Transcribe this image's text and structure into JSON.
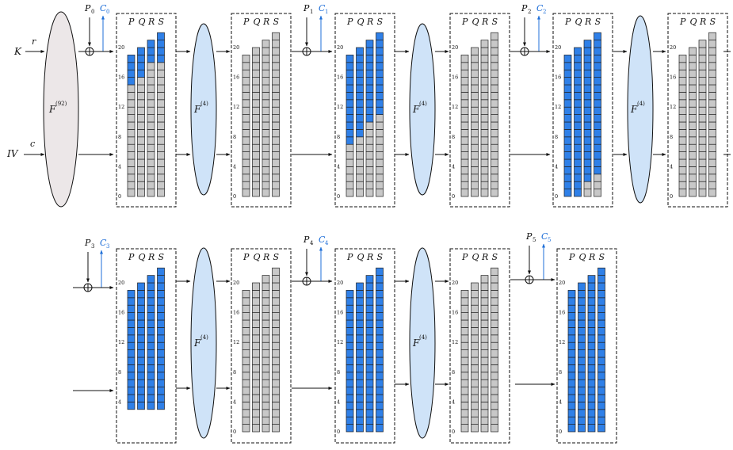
{
  "inputs": {
    "key": "K",
    "rate": "r",
    "iv": "IV",
    "capacity": "c"
  },
  "functions": {
    "init": "F",
    "init_sup": "(92)",
    "round": "F",
    "round_sup": "(4)"
  },
  "columns": [
    "P",
    "Q",
    "R",
    "S"
  ],
  "y_ticks": [
    "0",
    "4",
    "8",
    "12",
    "16",
    "20"
  ],
  "colors": {
    "blue": "#2f80e8",
    "gray": "#c8c8c8",
    "ellipse_init": "#ece7e8",
    "ellipse_round": "#cfe3f8",
    "cipher": "#1f6fd8"
  },
  "absorb_labels": [
    {
      "p": "P",
      "p_sub": "0",
      "c": "C",
      "c_sub": "0"
    },
    {
      "p": "P",
      "p_sub": "1",
      "c": "C",
      "c_sub": "1"
    },
    {
      "p": "P",
      "p_sub": "2",
      "c": "C",
      "c_sub": "2"
    },
    {
      "p": "P",
      "p_sub": "3",
      "c": "C",
      "c_sub": "3"
    },
    {
      "p": "P",
      "p_sub": "4",
      "c": "C",
      "c_sub": "4"
    },
    {
      "p": "P",
      "p_sub": "5",
      "c": "C",
      "c_sub": "5"
    }
  ],
  "states": [
    {
      "row": 1,
      "cols": [
        {
          "total": 19,
          "blue_top": 4
        },
        {
          "total": 20,
          "blue_top": 4
        },
        {
          "total": 21,
          "blue_top": 3
        },
        {
          "total": 22,
          "blue_top": 4
        }
      ]
    },
    {
      "row": 1,
      "cols": [
        {
          "total": 19,
          "blue_top": 0
        },
        {
          "total": 20,
          "blue_top": 0
        },
        {
          "total": 21,
          "blue_top": 0
        },
        {
          "total": 22,
          "blue_top": 0
        }
      ]
    },
    {
      "row": 1,
      "cols": [
        {
          "total": 19,
          "blue_top": 12
        },
        {
          "total": 20,
          "blue_top": 12
        },
        {
          "total": 21,
          "blue_top": 11
        },
        {
          "total": 22,
          "blue_top": 11
        }
      ]
    },
    {
      "row": 1,
      "cols": [
        {
          "total": 19,
          "blue_top": 0
        },
        {
          "total": 20,
          "blue_top": 0
        },
        {
          "total": 21,
          "blue_top": 0
        },
        {
          "total": 22,
          "blue_top": 0
        }
      ]
    },
    {
      "row": 1,
      "cols": [
        {
          "total": 19,
          "blue_top": 19
        },
        {
          "total": 20,
          "blue_top": 20
        },
        {
          "total": 21,
          "blue_top": 19
        },
        {
          "total": 22,
          "blue_top": 19
        }
      ]
    },
    {
      "row": 1,
      "cols": [
        {
          "total": 19,
          "blue_top": 0
        },
        {
          "total": 20,
          "blue_top": 0
        },
        {
          "total": 21,
          "blue_top": 0
        },
        {
          "total": 22,
          "blue_top": 0
        }
      ]
    },
    {
      "row": 2,
      "cols": [
        {
          "total": 19,
          "blue_top": 19
        },
        {
          "total": 20,
          "blue_top": 20
        },
        {
          "total": 21,
          "blue_top": 21
        },
        {
          "total": 22,
          "blue_top": 22
        }
      ]
    },
    {
      "row": 2,
      "cols": [
        {
          "total": 19,
          "blue_top": 0
        },
        {
          "total": 20,
          "blue_top": 0
        },
        {
          "total": 21,
          "blue_top": 0
        },
        {
          "total": 22,
          "blue_top": 0
        }
      ]
    },
    {
      "row": 2,
      "cols": [
        {
          "total": 19,
          "blue_top": 19
        },
        {
          "total": 20,
          "blue_top": 20
        },
        {
          "total": 21,
          "blue_top": 21
        },
        {
          "total": 22,
          "blue_top": 22
        }
      ]
    },
    {
      "row": 2,
      "cols": [
        {
          "total": 19,
          "blue_top": 0
        },
        {
          "total": 20,
          "blue_top": 0
        },
        {
          "total": 21,
          "blue_top": 0
        },
        {
          "total": 22,
          "blue_top": 0
        }
      ]
    },
    {
      "row": 2,
      "cols": [
        {
          "total": 19,
          "blue_top": 19
        },
        {
          "total": 20,
          "blue_top": 20
        },
        {
          "total": 21,
          "blue_top": 21
        },
        {
          "total": 22,
          "blue_top": 22
        }
      ]
    }
  ]
}
